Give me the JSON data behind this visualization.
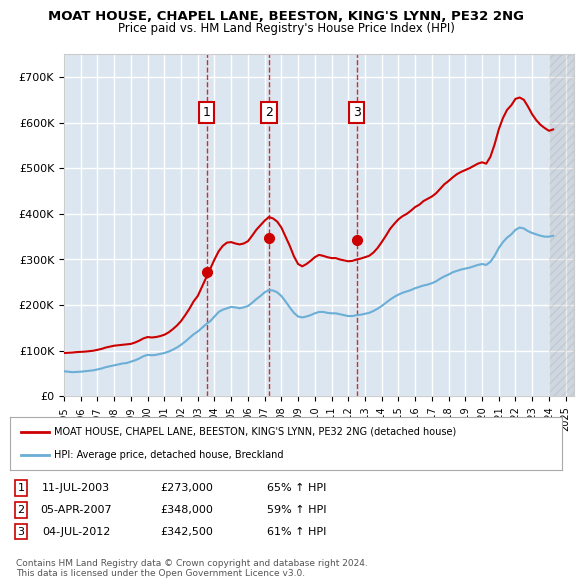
{
  "title": "MOAT HOUSE, CHAPEL LANE, BEESTON, KING'S LYNN, PE32 2NG",
  "subtitle": "Price paid vs. HM Land Registry's House Price Index (HPI)",
  "bg_color": "#dce6f0",
  "plot_bg_color": "#dce6f0",
  "grid_color": "#ffffff",
  "ylabel_color": "#000000",
  "hpi_color": "#6baed6",
  "price_color": "#cc0000",
  "sale_marker_color": "#cc0000",
  "vline_color": "#cc0000",
  "ylim": [
    0,
    750000
  ],
  "yticks": [
    0,
    100000,
    200000,
    300000,
    400000,
    500000,
    600000,
    700000
  ],
  "ytick_labels": [
    "£0",
    "£100K",
    "£200K",
    "£300K",
    "£400K",
    "£500K",
    "£600K",
    "£700K"
  ],
  "xlim_start": 1995.0,
  "xlim_end": 2025.5,
  "sale_dates": [
    2003.53,
    2007.26,
    2012.51
  ],
  "sale_prices": [
    273000,
    348000,
    342500
  ],
  "sale_labels": [
    "1",
    "2",
    "3"
  ],
  "legend_line1": "MOAT HOUSE, CHAPEL LANE, BEESTON, KING'S LYNN, PE32 2NG (detached house)",
  "legend_line2": "HPI: Average price, detached house, Breckland",
  "table_data": [
    [
      "1",
      "11-JUL-2003",
      "£273,000",
      "65% ↑ HPI"
    ],
    [
      "2",
      "05-APR-2007",
      "£348,000",
      "59% ↑ HPI"
    ],
    [
      "3",
      "04-JUL-2012",
      "£342,500",
      "61% ↑ HPI"
    ]
  ],
  "footer": "Contains HM Land Registry data © Crown copyright and database right 2024.\nThis data is licensed under the Open Government Licence v3.0.",
  "hpi_data_x": [
    1995.0,
    1995.25,
    1995.5,
    1995.75,
    1996.0,
    1996.25,
    1996.5,
    1996.75,
    1997.0,
    1997.25,
    1997.5,
    1997.75,
    1998.0,
    1998.25,
    1998.5,
    1998.75,
    1999.0,
    1999.25,
    1999.5,
    1999.75,
    2000.0,
    2000.25,
    2000.5,
    2000.75,
    2001.0,
    2001.25,
    2001.5,
    2001.75,
    2002.0,
    2002.25,
    2002.5,
    2002.75,
    2003.0,
    2003.25,
    2003.5,
    2003.75,
    2004.0,
    2004.25,
    2004.5,
    2004.75,
    2005.0,
    2005.25,
    2005.5,
    2005.75,
    2006.0,
    2006.25,
    2006.5,
    2006.75,
    2007.0,
    2007.25,
    2007.5,
    2007.75,
    2008.0,
    2008.25,
    2008.5,
    2008.75,
    2009.0,
    2009.25,
    2009.5,
    2009.75,
    2010.0,
    2010.25,
    2010.5,
    2010.75,
    2011.0,
    2011.25,
    2011.5,
    2011.75,
    2012.0,
    2012.25,
    2012.5,
    2012.75,
    2013.0,
    2013.25,
    2013.5,
    2013.75,
    2014.0,
    2014.25,
    2014.5,
    2014.75,
    2015.0,
    2015.25,
    2015.5,
    2015.75,
    2016.0,
    2016.25,
    2016.5,
    2016.75,
    2017.0,
    2017.25,
    2017.5,
    2017.75,
    2018.0,
    2018.25,
    2018.5,
    2018.75,
    2019.0,
    2019.25,
    2019.5,
    2019.75,
    2020.0,
    2020.25,
    2020.5,
    2020.75,
    2021.0,
    2021.25,
    2021.5,
    2021.75,
    2022.0,
    2022.25,
    2022.5,
    2022.75,
    2023.0,
    2023.25,
    2023.5,
    2023.75,
    2024.0,
    2024.25
  ],
  "hpi_data_y": [
    55000,
    54000,
    53000,
    53500,
    54000,
    55000,
    56000,
    57000,
    59000,
    61000,
    64000,
    66000,
    68000,
    70000,
    72000,
    73000,
    76000,
    79000,
    83000,
    88000,
    91000,
    90000,
    91000,
    93000,
    95000,
    98000,
    102000,
    107000,
    113000,
    120000,
    128000,
    136000,
    142000,
    150000,
    158000,
    165000,
    175000,
    185000,
    190000,
    193000,
    196000,
    195000,
    193000,
    195000,
    198000,
    205000,
    213000,
    220000,
    228000,
    233000,
    232000,
    228000,
    220000,
    208000,
    195000,
    183000,
    175000,
    173000,
    175000,
    178000,
    182000,
    185000,
    185000,
    183000,
    182000,
    182000,
    180000,
    178000,
    176000,
    176000,
    178000,
    179000,
    181000,
    183000,
    187000,
    192000,
    198000,
    205000,
    212000,
    218000,
    223000,
    227000,
    230000,
    233000,
    237000,
    240000,
    243000,
    245000,
    248000,
    252000,
    258000,
    263000,
    267000,
    272000,
    275000,
    278000,
    280000,
    282000,
    285000,
    288000,
    290000,
    288000,
    295000,
    308000,
    325000,
    338000,
    348000,
    355000,
    365000,
    370000,
    368000,
    362000,
    358000,
    355000,
    352000,
    350000,
    350000,
    352000
  ],
  "price_data_x": [
    1995.0,
    1995.25,
    1995.5,
    1995.75,
    1996.0,
    1996.25,
    1996.5,
    1996.75,
    1997.0,
    1997.25,
    1997.5,
    1997.75,
    1998.0,
    1998.25,
    1998.5,
    1998.75,
    1999.0,
    1999.25,
    1999.5,
    1999.75,
    2000.0,
    2000.25,
    2000.5,
    2000.75,
    2001.0,
    2001.25,
    2001.5,
    2001.75,
    2002.0,
    2002.25,
    2002.5,
    2002.75,
    2003.0,
    2003.25,
    2003.5,
    2003.75,
    2004.0,
    2004.25,
    2004.5,
    2004.75,
    2005.0,
    2005.25,
    2005.5,
    2005.75,
    2006.0,
    2006.25,
    2006.5,
    2006.75,
    2007.0,
    2007.25,
    2007.5,
    2007.75,
    2008.0,
    2008.25,
    2008.5,
    2008.75,
    2009.0,
    2009.25,
    2009.5,
    2009.75,
    2010.0,
    2010.25,
    2010.5,
    2010.75,
    2011.0,
    2011.25,
    2011.5,
    2011.75,
    2012.0,
    2012.25,
    2012.5,
    2012.75,
    2013.0,
    2013.25,
    2013.5,
    2013.75,
    2014.0,
    2014.25,
    2014.5,
    2014.75,
    2015.0,
    2015.25,
    2015.5,
    2015.75,
    2016.0,
    2016.25,
    2016.5,
    2016.75,
    2017.0,
    2017.25,
    2017.5,
    2017.75,
    2018.0,
    2018.25,
    2018.5,
    2018.75,
    2019.0,
    2019.25,
    2019.5,
    2019.75,
    2020.0,
    2020.25,
    2020.5,
    2020.75,
    2021.0,
    2021.25,
    2021.5,
    2021.75,
    2022.0,
    2022.25,
    2022.5,
    2022.75,
    2023.0,
    2023.25,
    2023.5,
    2023.75,
    2024.0,
    2024.25
  ],
  "price_data_y": [
    95000,
    95500,
    96000,
    97000,
    97500,
    98000,
    99000,
    100000,
    102000,
    104000,
    107000,
    109000,
    111000,
    112000,
    113000,
    114000,
    115000,
    118000,
    122000,
    127000,
    130000,
    129000,
    130000,
    132000,
    135000,
    140000,
    147000,
    155000,
    165000,
    178000,
    192000,
    208000,
    220000,
    240000,
    260000,
    280000,
    300000,
    318000,
    330000,
    337000,
    338000,
    335000,
    333000,
    335000,
    340000,
    352000,
    365000,
    375000,
    385000,
    393000,
    390000,
    383000,
    370000,
    350000,
    330000,
    307000,
    290000,
    285000,
    290000,
    297000,
    305000,
    310000,
    308000,
    305000,
    303000,
    303000,
    300000,
    298000,
    296000,
    297000,
    300000,
    302000,
    305000,
    308000,
    315000,
    325000,
    338000,
    352000,
    367000,
    378000,
    388000,
    395000,
    400000,
    407000,
    415000,
    420000,
    428000,
    433000,
    438000,
    445000,
    455000,
    465000,
    472000,
    480000,
    487000,
    492000,
    496000,
    500000,
    505000,
    510000,
    513000,
    510000,
    525000,
    552000,
    585000,
    610000,
    628000,
    638000,
    652000,
    655000,
    650000,
    635000,
    618000,
    605000,
    595000,
    588000,
    582000,
    585000
  ],
  "hatch_start": 2024.0
}
